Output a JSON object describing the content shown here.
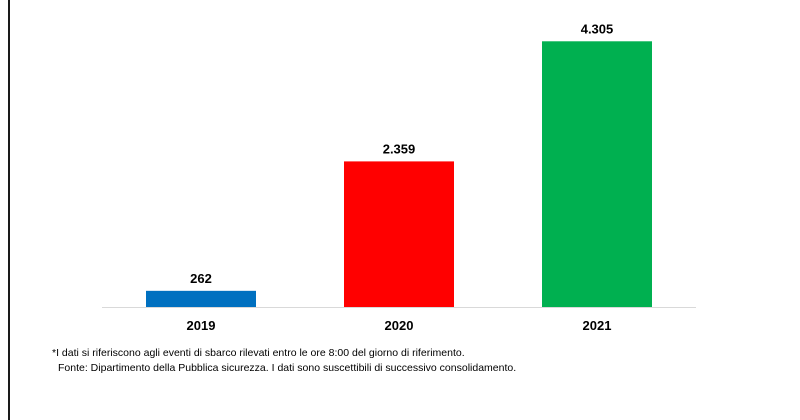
{
  "colors": {
    "bar_2019": "#0070c0",
    "bar_2020": "#ff0000",
    "bar_2021": "#00b050",
    "baseline": "#d9d9d9",
    "text": "#000000"
  },
  "chart_data": {
    "type": "bar",
    "categories": [
      "2019",
      "2020",
      "2021"
    ],
    "values": [
      262,
      2359,
      4305
    ],
    "value_labels": [
      "262",
      "2.359",
      "4.305"
    ],
    "title": "",
    "xlabel": "",
    "ylabel": "",
    "ylim": [
      0,
      4650
    ],
    "grid": false,
    "legend": "none"
  },
  "footnotes": {
    "note": "*I dati si riferiscono agli eventi di sbarco rilevati entro le ore 8:00 del giorno di riferimento.",
    "source": "Fonte: Dipartimento della Pubblica sicurezza. I dati sono suscettibili di successivo consolidamento."
  }
}
